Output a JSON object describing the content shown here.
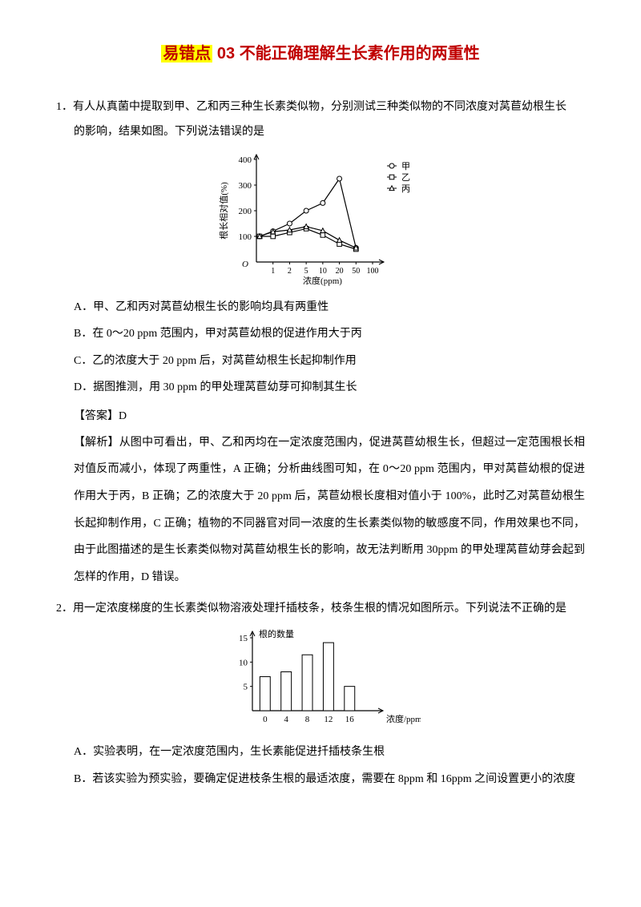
{
  "title": {
    "prefix": "易错点",
    "num": "03",
    "rest": " 不能正确理解生长素作用的两重性"
  },
  "q1": {
    "num": "1．",
    "stem_a": "有人从真菌中提取到甲、乙和丙三种生长素类似物，分别测试三种类似物的不同浓度对莴苣幼根生长",
    "stem_b": "的影响，结果如图。下列说法错误的是",
    "opts": {
      "A": "A．甲、乙和丙对莴苣幼根生长的影响均具有两重性",
      "B": "B．在 0～20 ppm 范围内，甲对莴苣幼根的促进作用大于丙",
      "C": "C．乙的浓度大于 20 ppm 后，对莴苣幼根生长起抑制作用",
      "D": "D．据图推测，用 30 ppm 的甲处理莴苣幼芽可抑制其生长"
    },
    "answer": "【答案】D",
    "analysis": "【解析】从图中可看出，甲、乙和丙均在一定浓度范围内，促进莴苣幼根生长，但超过一定范围根长相对值反而减小，体现了两重性，A 正确；分析曲线图可知，在 0～20 ppm 范围内，甲对莴苣幼根的促进作用大于丙，B 正确；乙的浓度大于 20 ppm 后，莴苣幼根长度相对值小于 100%，此时乙对莴苣幼根生长起抑制作用，C 正确；植物的不同器官对同一浓度的生长素类似物的敏感度不同，作用效果也不同，由于此图描述的是生长素类似物对莴苣幼根生长的影响，故无法判断用 30ppm 的甲处理莴苣幼芽会起到怎样的作用，D 错误。",
    "chart": {
      "type": "line",
      "ylabel": "根长相对值(%)",
      "xlabel": "浓度(ppm)",
      "ylim": [
        0,
        400
      ],
      "yticks": [
        100,
        200,
        300,
        400
      ],
      "xticks": [
        "1",
        "2",
        "5",
        "10",
        "20",
        "50",
        "100"
      ],
      "legend": [
        "甲",
        "乙",
        "丙"
      ],
      "markers": [
        "circle",
        "square",
        "triangle"
      ],
      "series": {
        "jia": [
          [
            0,
            100
          ],
          [
            1,
            120
          ],
          [
            2,
            150
          ],
          [
            3,
            200
          ],
          [
            4,
            230
          ],
          [
            5,
            325
          ],
          [
            6,
            55
          ]
        ],
        "yi": [
          [
            0,
            100
          ],
          [
            1,
            100
          ],
          [
            2,
            115
          ],
          [
            3,
            130
          ],
          [
            4,
            105
          ],
          [
            5,
            70
          ],
          [
            6,
            50
          ]
        ],
        "bing": [
          [
            0,
            100
          ],
          [
            1,
            118
          ],
          [
            2,
            125
          ],
          [
            3,
            138
          ],
          [
            4,
            122
          ],
          [
            5,
            85
          ],
          [
            6,
            55
          ]
        ]
      },
      "stroke": "#000000",
      "bg": "#ffffff",
      "fontsize": 11
    }
  },
  "q2": {
    "num": "2．",
    "stem": "用一定浓度梯度的生长素类似物溶液处理扦插枝条，枝条生根的情况如图所示。下列说法不正确的是",
    "opts": {
      "A": "A．实验表明，在一定浓度范围内，生长素能促进扦插枝条生根",
      "B": "B．若该实验为预实验，要确定促进枝条生根的最适浓度，需要在 8ppm 和 16ppm 之间设置更小的浓度"
    },
    "chart": {
      "type": "bar",
      "ylabel": "根的数量",
      "xlabel": "浓度/ppm",
      "ylim": [
        0,
        15
      ],
      "yticks": [
        5,
        10,
        15
      ],
      "categories": [
        "0",
        "4",
        "8",
        "12",
        "16"
      ],
      "values": [
        7,
        8,
        11.5,
        14,
        5
      ],
      "bar_color": "#ffffff",
      "stroke": "#000000",
      "bar_width": 0.35,
      "fontsize": 11
    }
  }
}
